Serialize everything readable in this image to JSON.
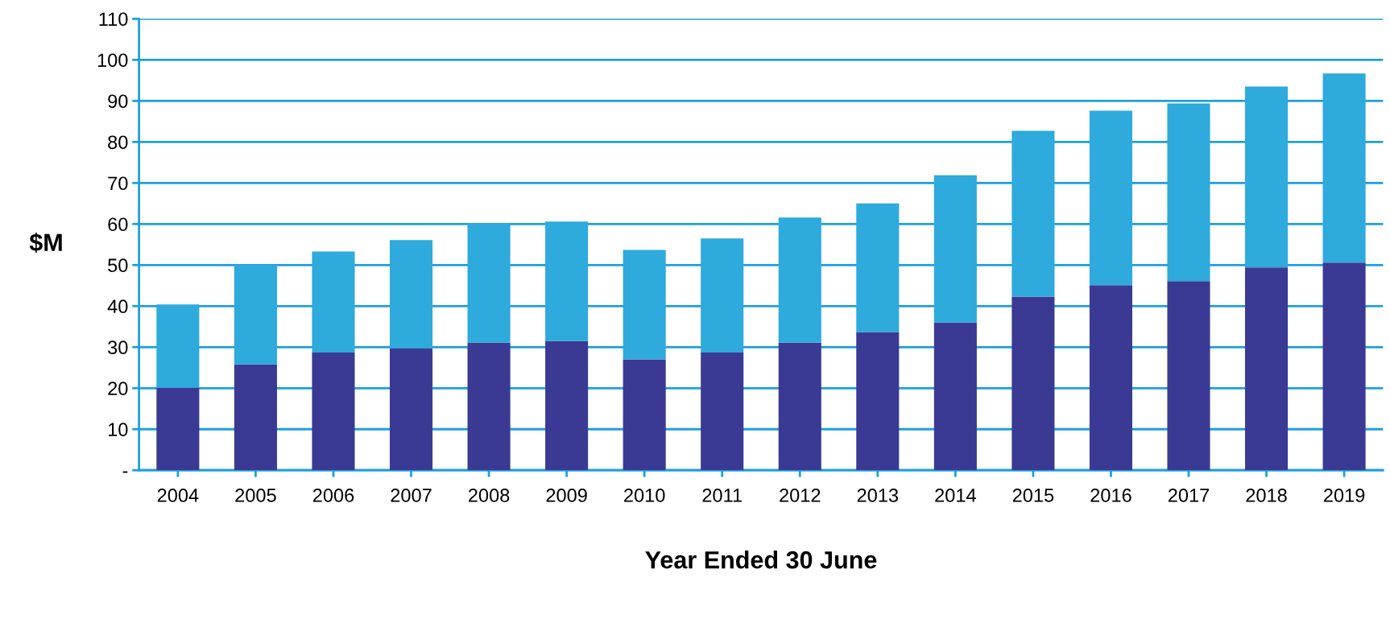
{
  "chart_data": {
    "type": "bar",
    "stacked": true,
    "xlabel": "Year Ended 30 June",
    "ylabel": "$M",
    "categories": [
      "2004",
      "2005",
      "2006",
      "2007",
      "2008",
      "2009",
      "2010",
      "2011",
      "2012",
      "2013",
      "2014",
      "2015",
      "2016",
      "2017",
      "2018",
      "2019"
    ],
    "series": [
      {
        "color": "#3a3a94",
        "values": [
          20.1,
          25.8,
          28.7,
          29.7,
          31.1,
          31.5,
          27.0,
          28.7,
          31.1,
          33.7,
          36.0,
          42.3,
          45.1,
          46.1,
          49.4,
          50.6
        ]
      },
      {
        "color": "#2eaadc",
        "values": [
          20.3,
          24.2,
          24.6,
          26.4,
          29.1,
          29.1,
          26.7,
          27.8,
          30.5,
          31.3,
          35.9,
          40.4,
          42.5,
          43.3,
          44.1,
          46.1
        ]
      }
    ],
    "ylim": [
      0,
      110
    ],
    "yticks": [
      {
        "value": 0,
        "label": "-"
      },
      10,
      20,
      30,
      40,
      50,
      60,
      70,
      80,
      90,
      100,
      110
    ],
    "grid": "y"
  }
}
